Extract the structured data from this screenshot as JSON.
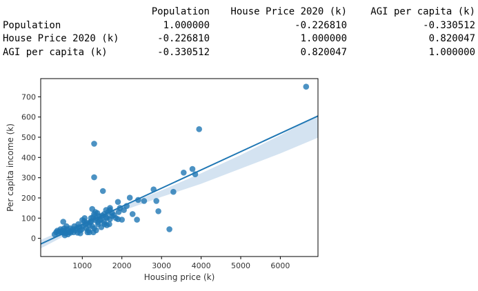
{
  "correlation_table": {
    "columns": [
      "Population",
      "House Price 2020 (k)",
      "AGI per capita (k)"
    ],
    "rows": [
      {
        "label": "Population",
        "values": [
          "1.000000",
          "-0.226810",
          "-0.330512"
        ]
      },
      {
        "label": "House Price 2020 (k)",
        "values": [
          "-0.226810",
          "1.000000",
          "0.820047"
        ]
      },
      {
        "label": "AGI per capita (k)",
        "values": [
          "-0.330512",
          "0.820047",
          "1.000000"
        ]
      }
    ]
  },
  "chart_data": {
    "type": "scatter",
    "xlabel": "Housing price (k)",
    "ylabel": "Per capita income (k)",
    "xlim": [
      -50,
      6950
    ],
    "ylim": [
      -90,
      790
    ],
    "x_ticks": [
      "1000",
      "2000",
      "3000",
      "4000",
      "5000",
      "6000"
    ],
    "y_ticks": [
      "0",
      "100",
      "200",
      "300",
      "400",
      "500",
      "600",
      "700"
    ],
    "grid": false,
    "colors": {
      "points": "#1f77b4",
      "regression_line": "#1f77b4",
      "confidence_band": "#c6d9ec"
    },
    "regression": {
      "line": [
        [
          -50,
          -28
        ],
        [
          6950,
          605
        ]
      ],
      "ci_upper": [
        [
          -50,
          -8
        ],
        [
          1000,
          82
        ],
        [
          1500,
          121
        ],
        [
          2000,
          160
        ],
        [
          3000,
          237
        ],
        [
          4000,
          322
        ],
        [
          5000,
          412
        ],
        [
          6000,
          510
        ],
        [
          6950,
          608
        ]
      ],
      "ci_lower": [
        [
          -50,
          -50
        ],
        [
          1000,
          58
        ],
        [
          1500,
          98
        ],
        [
          2000,
          135
        ],
        [
          3000,
          205
        ],
        [
          4000,
          270
        ],
        [
          5000,
          345
        ],
        [
          6000,
          420
        ],
        [
          6950,
          498
        ]
      ]
    },
    "points": [
      [
        6650,
        750
      ],
      [
        3950,
        540
      ],
      [
        1300,
        468
      ],
      [
        1300,
        302
      ],
      [
        1520,
        234
      ],
      [
        3300,
        230
      ],
      [
        3200,
        45
      ],
      [
        3560,
        325
      ],
      [
        3780,
        343
      ],
      [
        3850,
        317
      ],
      [
        2800,
        242
      ],
      [
        2870,
        185
      ],
      [
        2920,
        134
      ],
      [
        2560,
        185
      ],
      [
        2410,
        190
      ],
      [
        2200,
        201
      ],
      [
        2380,
        92
      ],
      [
        2270,
        120
      ],
      [
        2120,
        160
      ],
      [
        2000,
        92
      ],
      [
        1950,
        150
      ],
      [
        1900,
        180
      ],
      [
        1920,
        130
      ],
      [
        2050,
        140
      ],
      [
        1700,
        150
      ],
      [
        1650,
        130
      ],
      [
        1600,
        140
      ],
      [
        1550,
        120
      ],
      [
        1500,
        112
      ],
      [
        1450,
        90
      ],
      [
        1400,
        80
      ],
      [
        1350,
        100
      ],
      [
        1300,
        120
      ],
      [
        1250,
        145
      ],
      [
        1220,
        100
      ],
      [
        1200,
        80
      ],
      [
        1250,
        60
      ],
      [
        1300,
        50
      ],
      [
        1350,
        40
      ],
      [
        1400,
        70
      ],
      [
        1480,
        55
      ],
      [
        1550,
        80
      ],
      [
        1620,
        100
      ],
      [
        1700,
        95
      ],
      [
        1750,
        110
      ],
      [
        1800,
        115
      ],
      [
        1850,
        100
      ],
      [
        1900,
        95
      ],
      [
        1680,
        70
      ],
      [
        1620,
        65
      ],
      [
        1560,
        70
      ],
      [
        1480,
        95
      ],
      [
        1420,
        110
      ],
      [
        1380,
        125
      ],
      [
        1330,
        90
      ],
      [
        1280,
        30
      ],
      [
        1180,
        30
      ],
      [
        1150,
        40
      ],
      [
        1100,
        50
      ],
      [
        1080,
        70
      ],
      [
        1050,
        85
      ],
      [
        1020,
        60
      ],
      [
        990,
        45
      ],
      [
        950,
        40
      ],
      [
        920,
        55
      ],
      [
        900,
        70
      ],
      [
        860,
        50
      ],
      [
        830,
        40
      ],
      [
        800,
        60
      ],
      [
        760,
        45
      ],
      [
        720,
        35
      ],
      [
        690,
        50
      ],
      [
        650,
        30
      ],
      [
        620,
        45
      ],
      [
        600,
        60
      ],
      [
        580,
        25
      ],
      [
        560,
        35
      ],
      [
        540,
        50
      ],
      [
        520,
        28
      ],
      [
        500,
        40
      ],
      [
        480,
        30
      ],
      [
        450,
        45
      ],
      [
        420,
        35
      ],
      [
        400,
        25
      ],
      [
        370,
        38
      ],
      [
        340,
        30
      ],
      [
        300,
        20
      ],
      [
        520,
        82
      ],
      [
        700,
        28
      ],
      [
        880,
        28
      ],
      [
        1000,
        90
      ],
      [
        1060,
        100
      ],
      [
        1120,
        75
      ],
      [
        1180,
        65
      ],
      [
        1230,
        85
      ],
      [
        1270,
        105
      ],
      [
        1330,
        130
      ],
      [
        1130,
        30
      ],
      [
        950,
        25
      ],
      [
        780,
        30
      ],
      [
        640,
        20
      ],
      [
        560,
        15
      ],
      [
        1700,
        140
      ],
      [
        1750,
        125
      ],
      [
        1600,
        105
      ]
    ]
  }
}
